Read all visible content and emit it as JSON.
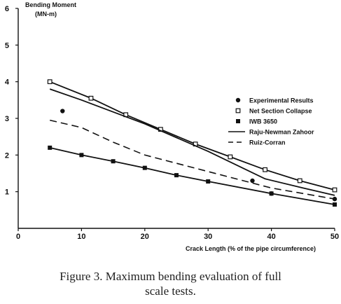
{
  "chart_data": {
    "type": "line",
    "ylabel_line1": "Bending Moment",
    "ylabel_line2": "(MN-m)",
    "xlabel": "Crack Length (% of the pipe circumference)",
    "xlim": [
      0,
      50
    ],
    "ylim": [
      0,
      6
    ],
    "x_ticks": [
      "0",
      "10",
      "20",
      "30",
      "40",
      "50"
    ],
    "y_ticks": [
      "1",
      "2",
      "3",
      "4",
      "5",
      "6"
    ],
    "grid": false,
    "legend_position": "right-middle",
    "series": [
      {
        "name": "Experimental Results",
        "marker": "filled-circle",
        "line": "none",
        "x": [
          7,
          37,
          40,
          50
        ],
        "y": [
          3.2,
          1.3,
          0.95,
          0.8
        ]
      },
      {
        "name": "Net Section Collapse",
        "marker": "open-square",
        "line": "solid",
        "x": [
          5,
          11.5,
          17,
          22.5,
          28,
          33.5,
          39,
          44.5,
          50
        ],
        "y": [
          4.0,
          3.55,
          3.1,
          2.7,
          2.3,
          1.95,
          1.6,
          1.3,
          1.05
        ]
      },
      {
        "name": "IWB 3650",
        "marker": "filled-square",
        "line": "solid",
        "x": [
          5,
          10,
          15,
          20,
          25,
          30,
          40,
          50
        ],
        "y": [
          2.2,
          2.0,
          1.83,
          1.65,
          1.45,
          1.28,
          0.95,
          0.65
        ]
      },
      {
        "name": "Raju-Newman Zahoor",
        "marker": "none",
        "line": "solid",
        "x": [
          5,
          10,
          20,
          30,
          39,
          45,
          50
        ],
        "y": [
          3.8,
          3.5,
          2.85,
          2.1,
          1.35,
          1.1,
          0.9
        ]
      },
      {
        "name": "Ruiz-Corran",
        "marker": "none",
        "line": "dashed",
        "x": [
          5,
          10,
          15,
          20,
          30,
          40,
          50
        ],
        "y": [
          2.95,
          2.75,
          2.35,
          2.0,
          1.55,
          1.1,
          0.8
        ]
      }
    ]
  },
  "caption": {
    "line1": "Figure 3. Maximum bending evaluation of full",
    "line2": "scale tests."
  }
}
